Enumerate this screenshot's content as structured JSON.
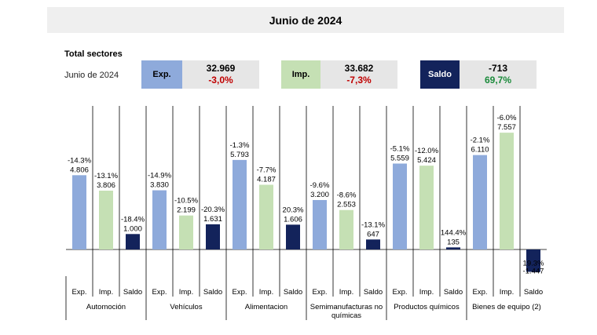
{
  "title": "Junio de 2024",
  "totals": {
    "label": "Total sectores",
    "period": "Junio de 2024",
    "exp": {
      "tag": "Exp.",
      "value": "32.969",
      "change": "-3,0%"
    },
    "imp": {
      "tag": "Imp.",
      "value": "33.682",
      "change": "-7,3%"
    },
    "saldo": {
      "tag": "Saldo",
      "value": "-713",
      "change": "69,7%"
    }
  },
  "colors": {
    "exp": "#8eaadb",
    "imp": "#c5e0b4",
    "saldo": "#13235b"
  },
  "chart_data": {
    "type": "bar",
    "categories": [
      "Automoción",
      "Vehículos",
      "Alimentacion",
      "Semimanufacturas no químicas",
      "Productos químicos",
      "Bienes de equipo (2)"
    ],
    "category_lines": [
      [
        "Automoción"
      ],
      [
        "Vehículos"
      ],
      [
        "Alimentacion"
      ],
      [
        "Semimanufacturas no",
        "químicas"
      ],
      [
        "Productos químicos"
      ],
      [
        "Bienes de equipo (2)"
      ]
    ],
    "sub_labels": [
      "Exp.",
      "Imp.",
      "Saldo"
    ],
    "series": [
      {
        "name": "Exp.",
        "values": [
          4806,
          3830,
          5793,
          3200,
          5559,
          6110
        ],
        "value_labels": [
          "4.806",
          "3.830",
          "5.793",
          "3.200",
          "5.559",
          "6.110"
        ],
        "change_labels": [
          "-14.3%",
          "-14.9%",
          "-1.3%",
          "-9.6%",
          "-5.1%",
          "-2.1%"
        ]
      },
      {
        "name": "Imp.",
        "values": [
          3806,
          2199,
          4187,
          2553,
          5424,
          7557
        ],
        "value_labels": [
          "3.806",
          "2.199",
          "4.187",
          "2.553",
          "5.424",
          "7.557"
        ],
        "change_labels": [
          "-13.1%",
          "-10.5%",
          "-7.7%",
          "-8.6%",
          "-12.0%",
          "-6.0%"
        ]
      },
      {
        "name": "Saldo",
        "values": [
          1000,
          1631,
          1606,
          647,
          135,
          -1447
        ],
        "value_labels": [
          "1.000",
          "1.631",
          "1.606",
          "647",
          "135",
          "-1.447"
        ],
        "change_labels": [
          "-18.4%",
          "-20.3%",
          "20.3%",
          "-13.1%",
          "144.4%",
          "19.3%"
        ]
      }
    ],
    "ylim": [
      -1700,
      8500
    ],
    "grid": false
  }
}
